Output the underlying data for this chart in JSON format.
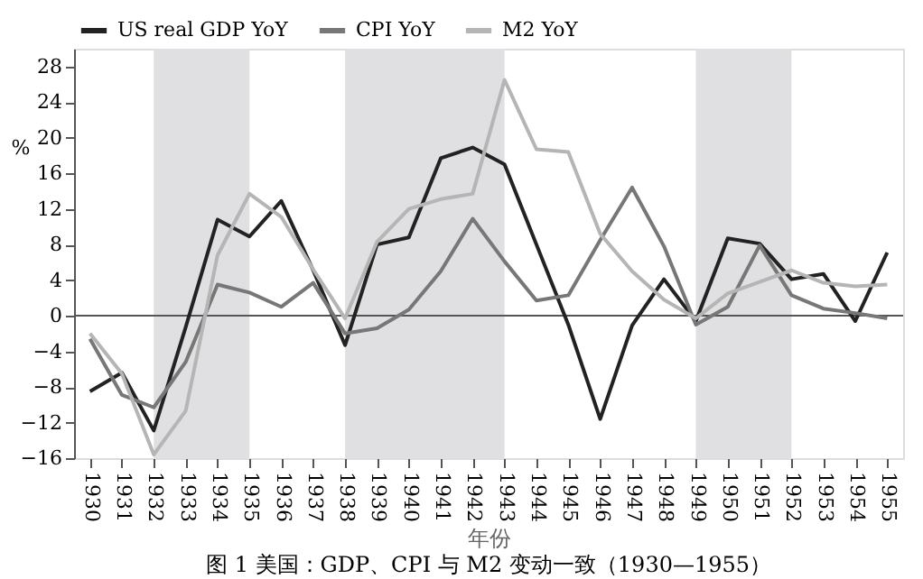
{
  "chart_data": {
    "type": "line",
    "title": "图 1  美国：GDP、CPI 与 M2 变动一致（1930—1955）",
    "xlabel": "年份",
    "ylabel": "%",
    "categories": [
      "1930",
      "1931",
      "1932",
      "1933",
      "1934",
      "1935",
      "1936",
      "1937",
      "1938",
      "1939",
      "1940",
      "1941",
      "1942",
      "1943",
      "1944",
      "1945",
      "1946",
      "1947",
      "1948",
      "1949",
      "1950",
      "1951",
      "1952",
      "1953",
      "1954",
      "1955"
    ],
    "series": [
      {
        "name": "US real GDP YoY",
        "color": "#222222",
        "values": [
          -8.5,
          -6.4,
          -12.9,
          -1.3,
          10.8,
          8.9,
          12.9,
          5.1,
          -3.3,
          8.0,
          8.8,
          17.7,
          18.9,
          17.0,
          8.0,
          -1.0,
          -11.6,
          -1.1,
          4.1,
          -0.6,
          8.7,
          8.1,
          4.1,
          4.7,
          -0.6,
          7.1
        ]
      },
      {
        "name": "CPI YoY",
        "color": "#777777",
        "values": [
          -2.6,
          -8.9,
          -10.3,
          -5.2,
          3.5,
          2.6,
          1.0,
          3.7,
          -2.0,
          -1.4,
          0.7,
          5.0,
          10.9,
          6.1,
          1.7,
          2.3,
          8.5,
          14.4,
          7.8,
          -1.0,
          1.0,
          7.9,
          2.3,
          0.8,
          0.3,
          -0.3
        ]
      },
      {
        "name": "M2 YoY",
        "color": "#b5b5b5",
        "values": [
          -2.0,
          -6.5,
          -15.6,
          -10.7,
          6.8,
          13.7,
          11.1,
          5.2,
          -0.3,
          8.3,
          12.0,
          13.1,
          13.7,
          26.5,
          18.7,
          18.4,
          9.2,
          5.0,
          1.8,
          -0.3,
          2.5,
          3.8,
          5.1,
          3.7,
          3.3,
          3.5
        ]
      }
    ],
    "bands": [
      {
        "axis": "x",
        "from": "1932",
        "to": "1935",
        "color": "#e0e0e2"
      },
      {
        "axis": "x",
        "from": "1938",
        "to": "1943",
        "color": "#e0e0e2"
      },
      {
        "axis": "x",
        "from": "1949",
        "to": "1952",
        "color": "#e0e0e2"
      }
    ],
    "ref_lines": [
      {
        "axis": "y",
        "value": 0,
        "color": "#555555"
      }
    ],
    "ylim": [
      -16,
      30
    ],
    "yticks": [
      -16,
      -12,
      -8,
      -4,
      0,
      4,
      8,
      12,
      16,
      20,
      24,
      28
    ],
    "grid": false,
    "legend": "top",
    "line_style": "solid",
    "marker": "none"
  }
}
